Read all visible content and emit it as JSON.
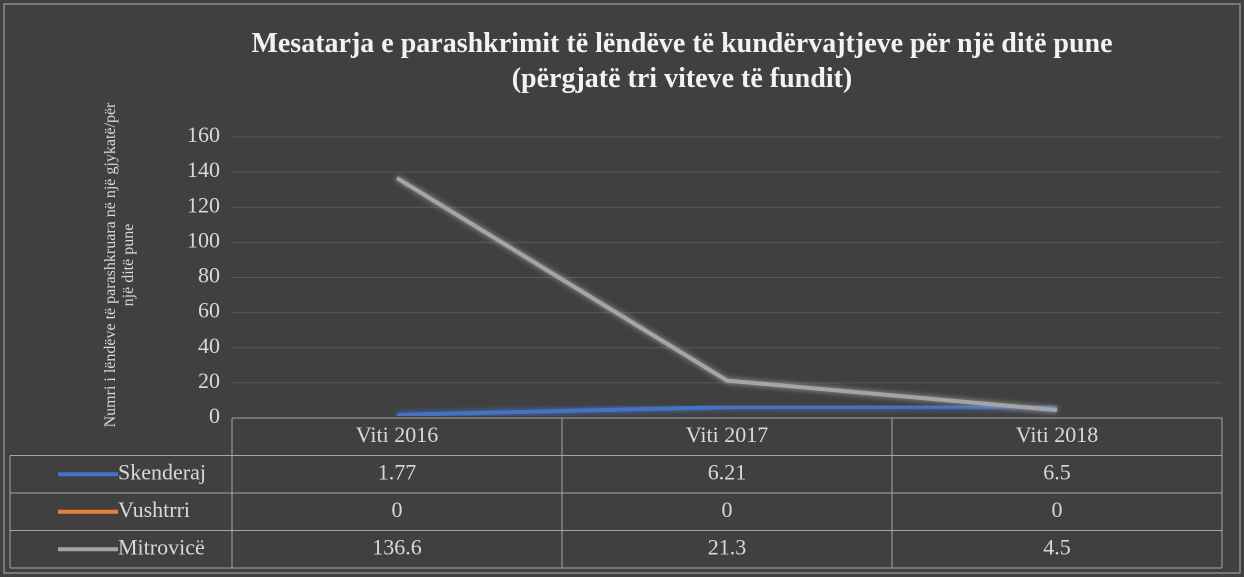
{
  "chart_data": {
    "type": "line",
    "title": "Mesatarja e parashkrimit të lëndëve të kundërvajtjeve për një ditë pune (përgjatë tri viteve të fundit)",
    "y_label": "Numri i lëndëve të parashkruara në një gjykatë/për një ditë pune",
    "categories": [
      "Viti 2016",
      "Viti 2017",
      "Viti 2018"
    ],
    "series": [
      {
        "name": "Skenderaj",
        "color": "#4472c4",
        "values": [
          1.77,
          6.21,
          6.5
        ]
      },
      {
        "name": "Vushtrri",
        "color": "#ed7d31",
        "values": [
          0,
          0,
          0
        ]
      },
      {
        "name": "Mitrovicë",
        "color": "#a5a5a5",
        "values": [
          136.6,
          21.3,
          4.5
        ]
      }
    ],
    "ylim": [
      0,
      160
    ],
    "yticks": [
      0,
      20,
      40,
      60,
      80,
      100,
      120,
      140,
      160
    ],
    "grid": true,
    "data_table": true
  }
}
